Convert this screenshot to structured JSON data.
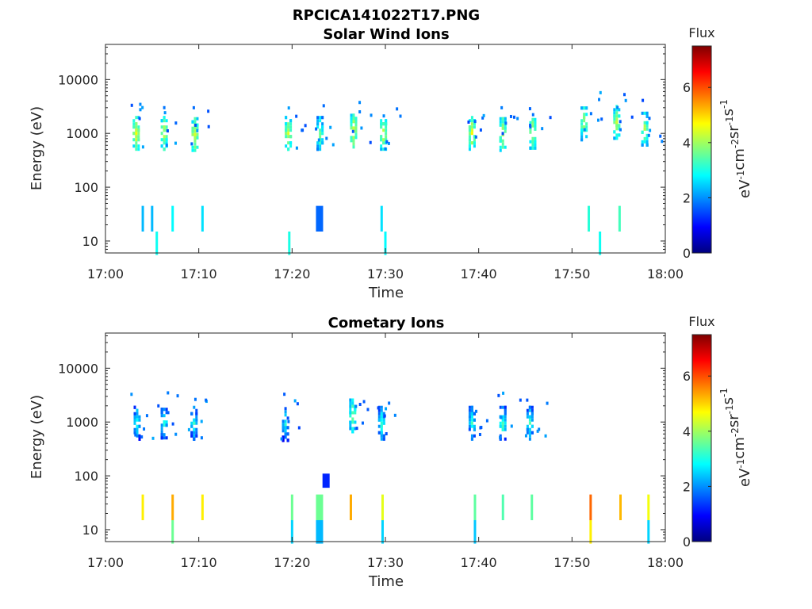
{
  "figure_title": "RPCICA141022T17.PNG",
  "colors": {
    "axis": "#262626",
    "colormap": [
      "#00007f",
      "#0000ff",
      "#007fff",
      "#00ffff",
      "#7fff7f",
      "#ffff00",
      "#ff7f00",
      "#ff0000",
      "#7f0000"
    ]
  },
  "chart_data": [
    {
      "type": "heatmap",
      "title": "Solar Wind Ions",
      "xlabel": "Time",
      "ylabel": "Energy (eV)",
      "x_ticks": [
        "17:00",
        "17:10",
        "17:20",
        "17:30",
        "17:40",
        "17:50",
        "18:00"
      ],
      "y_ticks": [
        "10",
        "100",
        "1000",
        "10000"
      ],
      "y_scale": "log",
      "ylim": [
        6,
        45000
      ],
      "xlim_minutes": [
        0,
        60
      ],
      "colorbar": {
        "title": "Flux",
        "units": "eV-1cm-2sr-1s-1",
        "ticks": [
          "0",
          "2",
          "4",
          "6"
        ],
        "range": [
          0,
          7.5
        ]
      },
      "clusters": [
        {
          "t": 3.3,
          "e": 1000,
          "v": 3.2
        },
        {
          "t": 6.3,
          "e": 1000,
          "v": 3.0
        },
        {
          "t": 9.6,
          "e": 950,
          "v": 3.1
        },
        {
          "t": 19.6,
          "e": 1000,
          "v": 3.0
        },
        {
          "t": 23.0,
          "e": 1000,
          "v": 2.4
        },
        {
          "t": 26.6,
          "e": 1100,
          "v": 3.2
        },
        {
          "t": 29.8,
          "e": 1000,
          "v": 3.0
        },
        {
          "t": 39.3,
          "e": 1000,
          "v": 3.2
        },
        {
          "t": 42.6,
          "e": 950,
          "v": 3.0
        },
        {
          "t": 45.8,
          "e": 1050,
          "v": 3.0
        },
        {
          "t": 51.3,
          "e": 1500,
          "v": 2.8
        },
        {
          "t": 54.8,
          "e": 1600,
          "v": 2.8
        },
        {
          "t": 57.8,
          "e": 1200,
          "v": 2.8
        }
      ],
      "bars": [
        {
          "t": 4.0,
          "e": [
            15,
            45
          ],
          "v": 2.3
        },
        {
          "t": 5.0,
          "e": [
            15,
            45
          ],
          "v": 2.3
        },
        {
          "t": 7.2,
          "e": [
            15,
            45
          ],
          "v": 2.8
        },
        {
          "t": 10.4,
          "e": [
            15,
            45
          ],
          "v": 2.6
        },
        {
          "t": 5.5,
          "e": [
            5.5,
            15
          ],
          "v": 2.9
        },
        {
          "t": 19.7,
          "e": [
            5.5,
            15
          ],
          "v": 3.0
        },
        {
          "t": 29.6,
          "e": [
            15,
            45
          ],
          "v": 2.6
        },
        {
          "t": 30.0,
          "e": [
            5.5,
            15
          ],
          "v": 2.8
        },
        {
          "t": 51.8,
          "e": [
            15,
            45
          ],
          "v": 3.1
        },
        {
          "t": 55.1,
          "e": [
            15,
            45
          ],
          "v": 3.3
        },
        {
          "t": 53.0,
          "e": [
            5.5,
            15
          ],
          "v": 2.9
        },
        {
          "t": 22.9,
          "e": [
            15,
            45
          ],
          "v": 1.7
        }
      ]
    },
    {
      "type": "heatmap",
      "title": "Cometary Ions",
      "xlabel": "Time",
      "ylabel": "Energy (eV)",
      "x_ticks": [
        "17:00",
        "17:10",
        "17:20",
        "17:30",
        "17:40",
        "17:50",
        "18:00"
      ],
      "y_ticks": [
        "10",
        "100",
        "1000",
        "10000"
      ],
      "y_scale": "log",
      "ylim": [
        6,
        45000
      ],
      "xlim_minutes": [
        0,
        60
      ],
      "colorbar": {
        "title": "Flux",
        "units": "eV-1cm-2sr-1s-1",
        "ticks": [
          "0",
          "2",
          "4",
          "6"
        ],
        "range": [
          0,
          7.5
        ]
      },
      "clusters": [
        {
          "t": 3.4,
          "e": 950,
          "v": 1.8
        },
        {
          "t": 6.3,
          "e": 1000,
          "v": 1.8
        },
        {
          "t": 9.5,
          "e": 950,
          "v": 1.7
        },
        {
          "t": 19.3,
          "e": 900,
          "v": 1.6
        },
        {
          "t": 26.5,
          "e": 1300,
          "v": 2.5
        },
        {
          "t": 29.6,
          "e": 950,
          "v": 1.9
        },
        {
          "t": 39.3,
          "e": 950,
          "v": 1.8
        },
        {
          "t": 42.6,
          "e": 950,
          "v": 2.0
        },
        {
          "t": 45.5,
          "e": 950,
          "v": 1.9
        }
      ],
      "bars": [
        {
          "t": 4.0,
          "e": [
            15,
            45
          ],
          "v": 4.8
        },
        {
          "t": 7.2,
          "e": [
            15,
            45
          ],
          "v": 5.3
        },
        {
          "t": 10.4,
          "e": [
            15,
            45
          ],
          "v": 4.8
        },
        {
          "t": 7.2,
          "e": [
            5.5,
            15
          ],
          "v": 3.6
        },
        {
          "t": 20.0,
          "e": [
            15,
            45
          ],
          "v": 3.6
        },
        {
          "t": 20.0,
          "e": [
            5.5,
            15
          ],
          "v": 2.5
        },
        {
          "t": 26.3,
          "e": [
            15,
            45
          ],
          "v": 5.3
        },
        {
          "t": 29.7,
          "e": [
            15,
            45
          ],
          "v": 4.5
        },
        {
          "t": 29.7,
          "e": [
            5.5,
            15
          ],
          "v": 2.5
        },
        {
          "t": 39.6,
          "e": [
            15,
            45
          ],
          "v": 3.5
        },
        {
          "t": 39.6,
          "e": [
            5.5,
            15
          ],
          "v": 2.4
        },
        {
          "t": 42.6,
          "e": [
            15,
            45
          ],
          "v": 3.4
        },
        {
          "t": 45.7,
          "e": [
            15,
            45
          ],
          "v": 3.5
        },
        {
          "t": 52.0,
          "e": [
            15,
            45
          ],
          "v": 5.8
        },
        {
          "t": 52.0,
          "e": [
            5.5,
            15
          ],
          "v": 4.8
        },
        {
          "t": 55.2,
          "e": [
            15,
            45
          ],
          "v": 5.2
        },
        {
          "t": 58.2,
          "e": [
            15,
            45
          ],
          "v": 4.6
        },
        {
          "t": 58.2,
          "e": [
            5.5,
            15
          ],
          "v": 2.5
        },
        {
          "t": 22.9,
          "e": [
            15,
            45
          ],
          "v": 3.6
        },
        {
          "t": 22.9,
          "e": [
            5.5,
            15
          ],
          "v": 2.3
        },
        {
          "t": 23.6,
          "e": [
            60,
            110
          ],
          "v": 1.2
        }
      ]
    }
  ]
}
